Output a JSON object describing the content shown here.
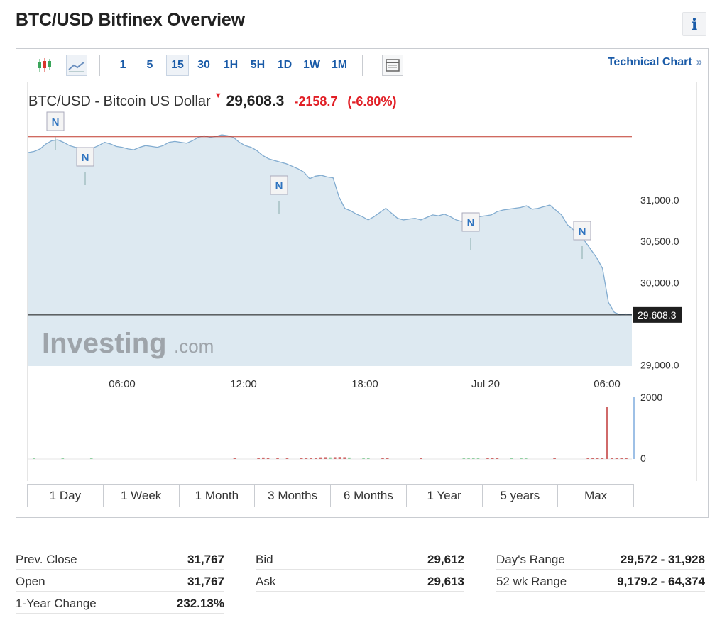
{
  "page": {
    "title": "BTC/USD Bitfinex Overview",
    "info_icon": "i"
  },
  "toolbar": {
    "icons": [
      "candlestick-icon",
      "area-chart-icon",
      "table-icon"
    ],
    "timeframes": [
      "1",
      "5",
      "15",
      "30",
      "1H",
      "5H",
      "1D",
      "1W",
      "1M"
    ],
    "active_timeframe": "15",
    "technical_chart_label": "Technical Chart",
    "technical_chart_arrow": "»"
  },
  "quote": {
    "name": "BTC/USD - Bitcoin US Dollar",
    "price": "29,608.3",
    "change": "-2158.7",
    "change_pct": "(-6.80%)"
  },
  "colors": {
    "accent": "#1a5ba8",
    "negative": "#e11f26",
    "volume_up": "#92d0a2",
    "volume_down": "#d06a6a",
    "area_fill": "#dde9f1",
    "area_line": "#82acd0",
    "prev_close_line": "#c0392b"
  },
  "chart_data": {
    "type": "area",
    "y_ticks": [
      "31,000.0",
      "30,500.0",
      "30,000.0",
      "29,000.0"
    ],
    "x_ticks": [
      "06:00",
      "12:00",
      "18:00",
      "Jul 20",
      "06:00"
    ],
    "current_price_label": "29,608.3",
    "prev_close": 31767,
    "news_markers": [
      "N",
      "N",
      "N",
      "N",
      "N"
    ],
    "watermark": "Investing.com",
    "series": [
      {
        "values": [
          31576,
          31590,
          31620,
          31680,
          31720,
          31730,
          31700,
          31660,
          31640,
          31630,
          31600,
          31630,
          31660,
          31700,
          31680,
          31650,
          31640,
          31620,
          31610,
          31640,
          31660,
          31650,
          31640,
          31660,
          31700,
          31710,
          31700,
          31690,
          31720,
          31760,
          31780,
          31760,
          31770,
          31790,
          31780,
          31760,
          31700,
          31660,
          31640,
          31600,
          31540,
          31500,
          31480,
          31460,
          31440,
          31410,
          31380,
          31340,
          31260,
          31290,
          31300,
          31280,
          31270,
          31040,
          30900,
          30870,
          30830,
          30800,
          30760,
          30800,
          30850,
          30900,
          30840,
          30780,
          30760,
          30770,
          30780,
          30760,
          30790,
          30820,
          30810,
          30830,
          30800,
          30760,
          30740,
          30760,
          30780,
          30800,
          30810,
          30820,
          30860,
          30880,
          30890,
          30900,
          30910,
          30930,
          30890,
          30900,
          30920,
          30940,
          30880,
          30820,
          30700,
          30640,
          30600,
          30500,
          30400,
          30300,
          30170,
          29760,
          29640,
          29610,
          29620,
          29608
        ]
      }
    ],
    "volume": {
      "y_ticks": [
        "2000",
        "0"
      ],
      "ymax": 2000,
      "bars": [
        {
          "v": 20,
          "dir": "up"
        },
        {
          "v": 0,
          "dir": "up"
        },
        {
          "v": 0,
          "dir": "up"
        },
        {
          "v": 0,
          "dir": "up"
        },
        {
          "v": 0,
          "dir": "up"
        },
        {
          "v": 0,
          "dir": "up"
        },
        {
          "v": 45,
          "dir": "up"
        },
        {
          "v": 0,
          "dir": "up"
        },
        {
          "v": 0,
          "dir": "up"
        },
        {
          "v": 0,
          "dir": "up"
        },
        {
          "v": 0,
          "dir": "up"
        },
        {
          "v": 0,
          "dir": "up"
        },
        {
          "v": 20,
          "dir": "up"
        },
        {
          "v": 0,
          "dir": "up"
        },
        {
          "v": 0,
          "dir": "up"
        },
        {
          "v": 0,
          "dir": "up"
        },
        {
          "v": 0,
          "dir": "up"
        },
        {
          "v": 0,
          "dir": "up"
        },
        {
          "v": 0,
          "dir": "up"
        },
        {
          "v": 0,
          "dir": "up"
        },
        {
          "v": 0,
          "dir": "up"
        },
        {
          "v": 0,
          "dir": "up"
        },
        {
          "v": 0,
          "dir": "up"
        },
        {
          "v": 0,
          "dir": "up"
        },
        {
          "v": 0,
          "dir": "up"
        },
        {
          "v": 0,
          "dir": "up"
        },
        {
          "v": 0,
          "dir": "up"
        },
        {
          "v": 0,
          "dir": "up"
        },
        {
          "v": 0,
          "dir": "up"
        },
        {
          "v": 0,
          "dir": "up"
        },
        {
          "v": 0,
          "dir": "up"
        },
        {
          "v": 0,
          "dir": "up"
        },
        {
          "v": 0,
          "dir": "up"
        },
        {
          "v": 0,
          "dir": "up"
        },
        {
          "v": 0,
          "dir": "up"
        },
        {
          "v": 0,
          "dir": "up"
        },
        {
          "v": 0,
          "dir": "up"
        },
        {
          "v": 0,
          "dir": "up"
        },
        {
          "v": 0,
          "dir": "up"
        },
        {
          "v": 0,
          "dir": "up"
        },
        {
          "v": 0,
          "dir": "up"
        },
        {
          "v": 0,
          "dir": "up"
        },
        {
          "v": 10,
          "dir": "down"
        },
        {
          "v": 0,
          "dir": "up"
        },
        {
          "v": 0,
          "dir": "up"
        },
        {
          "v": 0,
          "dir": "up"
        },
        {
          "v": 0,
          "dir": "up"
        },
        {
          "v": 30,
          "dir": "down"
        },
        {
          "v": 50,
          "dir": "down"
        },
        {
          "v": 30,
          "dir": "down"
        },
        {
          "v": 0,
          "dir": "up"
        },
        {
          "v": 10,
          "dir": "down"
        },
        {
          "v": 0,
          "dir": "up"
        },
        {
          "v": 10,
          "dir": "down"
        },
        {
          "v": 0,
          "dir": "up"
        },
        {
          "v": 0,
          "dir": "up"
        },
        {
          "v": 10,
          "dir": "down"
        },
        {
          "v": 15,
          "dir": "down"
        },
        {
          "v": 15,
          "dir": "down"
        },
        {
          "v": 25,
          "dir": "down"
        },
        {
          "v": 55,
          "dir": "down"
        },
        {
          "v": 60,
          "dir": "down"
        },
        {
          "v": 55,
          "dir": "up"
        },
        {
          "v": 60,
          "dir": "down"
        },
        {
          "v": 65,
          "dir": "down"
        },
        {
          "v": 60,
          "dir": "down"
        },
        {
          "v": 50,
          "dir": "up"
        },
        {
          "v": 0,
          "dir": "up"
        },
        {
          "v": 0,
          "dir": "up"
        },
        {
          "v": 15,
          "dir": "up"
        },
        {
          "v": 15,
          "dir": "up"
        },
        {
          "v": 0,
          "dir": "up"
        },
        {
          "v": 0,
          "dir": "up"
        },
        {
          "v": 10,
          "dir": "down"
        },
        {
          "v": 25,
          "dir": "down"
        },
        {
          "v": 0,
          "dir": "up"
        },
        {
          "v": 0,
          "dir": "up"
        },
        {
          "v": 0,
          "dir": "up"
        },
        {
          "v": 0,
          "dir": "up"
        },
        {
          "v": 0,
          "dir": "up"
        },
        {
          "v": 0,
          "dir": "up"
        },
        {
          "v": 10,
          "dir": "down"
        },
        {
          "v": 0,
          "dir": "up"
        },
        {
          "v": 0,
          "dir": "up"
        },
        {
          "v": 0,
          "dir": "up"
        },
        {
          "v": 0,
          "dir": "up"
        },
        {
          "v": 0,
          "dir": "up"
        },
        {
          "v": 0,
          "dir": "up"
        },
        {
          "v": 0,
          "dir": "up"
        },
        {
          "v": 0,
          "dir": "up"
        },
        {
          "v": 30,
          "dir": "up"
        },
        {
          "v": 35,
          "dir": "up"
        },
        {
          "v": 30,
          "dir": "up"
        },
        {
          "v": 40,
          "dir": "up"
        },
        {
          "v": 0,
          "dir": "up"
        },
        {
          "v": 40,
          "dir": "down"
        },
        {
          "v": 40,
          "dir": "down"
        },
        {
          "v": 30,
          "dir": "down"
        },
        {
          "v": 0,
          "dir": "up"
        },
        {
          "v": 0,
          "dir": "up"
        },
        {
          "v": 15,
          "dir": "up"
        },
        {
          "v": 0,
          "dir": "up"
        },
        {
          "v": 15,
          "dir": "up"
        },
        {
          "v": 10,
          "dir": "up"
        },
        {
          "v": 0,
          "dir": "up"
        },
        {
          "v": 0,
          "dir": "up"
        },
        {
          "v": 0,
          "dir": "up"
        },
        {
          "v": 0,
          "dir": "up"
        },
        {
          "v": 0,
          "dir": "up"
        },
        {
          "v": 10,
          "dir": "down"
        },
        {
          "v": 0,
          "dir": "up"
        },
        {
          "v": 0,
          "dir": "up"
        },
        {
          "v": 0,
          "dir": "up"
        },
        {
          "v": 0,
          "dir": "up"
        },
        {
          "v": 0,
          "dir": "up"
        },
        {
          "v": 0,
          "dir": "up"
        },
        {
          "v": 45,
          "dir": "down"
        },
        {
          "v": 20,
          "dir": "down"
        },
        {
          "v": 20,
          "dir": "down"
        },
        {
          "v": 30,
          "dir": "down"
        },
        {
          "v": 1700,
          "dir": "down"
        },
        {
          "v": 40,
          "dir": "down"
        },
        {
          "v": 20,
          "dir": "down"
        },
        {
          "v": 10,
          "dir": "down"
        },
        {
          "v": 10,
          "dir": "down"
        }
      ]
    }
  },
  "periods": [
    "1 Day",
    "1 Week",
    "1 Month",
    "3 Months",
    "6 Months",
    "1 Year",
    "5 years",
    "Max"
  ],
  "stats": [
    [
      {
        "label": "Prev. Close",
        "value": "31,767"
      },
      {
        "label": "Open",
        "value": "31,767"
      },
      {
        "label": "1-Year Change",
        "value": "232.13%"
      }
    ],
    [
      {
        "label": "Bid",
        "value": "29,612"
      },
      {
        "label": "Ask",
        "value": "29,613"
      }
    ],
    [
      {
        "label": "Day's Range",
        "value": "29,572 - 31,928"
      },
      {
        "label": "52 wk Range",
        "value": "9,179.2 - 64,374"
      }
    ]
  ]
}
